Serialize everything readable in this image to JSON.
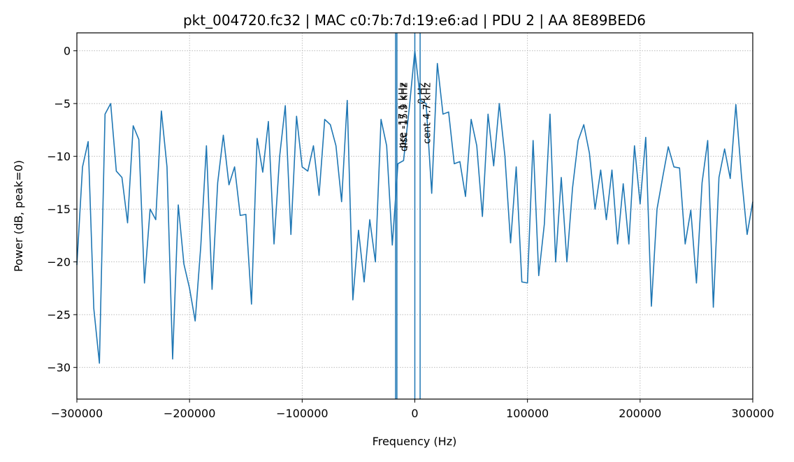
{
  "chart_data": {
    "type": "line",
    "title": "pkt_004720.fc32 | MAC c0:7b:7d:19:e6:ad | PDU 2 | AA 8E89BED6",
    "x_label": "Frequency (Hz)",
    "y_label": "Power (dB, peak=0)",
    "x": [
      -300000,
      -295000,
      -290000,
      -285000,
      -280000,
      -275000,
      -270000,
      -265000,
      -260000,
      -255000,
      -250000,
      -245000,
      -240000,
      -235000,
      -230000,
      -225000,
      -220000,
      -215000,
      -210000,
      -205000,
      -200000,
      -195000,
      -190000,
      -185000,
      -180000,
      -175000,
      -170000,
      -165000,
      -160000,
      -155000,
      -150000,
      -145000,
      -140000,
      -135000,
      -130000,
      -125000,
      -120000,
      -115000,
      -110000,
      -105000,
      -100000,
      -95000,
      -90000,
      -85000,
      -80000,
      -75000,
      -70000,
      -65000,
      -60000,
      -55000,
      -50000,
      -45000,
      -40000,
      -35000,
      -30000,
      -25000,
      -20000,
      -15000,
      -10000,
      -5000,
      0,
      5000,
      10000,
      15000,
      20000,
      25000,
      30000,
      35000,
      40000,
      45000,
      50000,
      55000,
      60000,
      65000,
      70000,
      75000,
      80000,
      85000,
      90000,
      95000,
      100000,
      105000,
      110000,
      115000,
      120000,
      125000,
      130000,
      135000,
      140000,
      145000,
      150000,
      155000,
      160000,
      165000,
      170000,
      175000,
      180000,
      185000,
      190000,
      195000,
      200000,
      205000,
      210000,
      215000,
      220000,
      225000,
      230000,
      235000,
      240000,
      245000,
      250000,
      255000,
      260000,
      265000,
      270000,
      275000,
      280000,
      285000,
      290000,
      295000,
      300000
    ],
    "series": [
      {
        "name": "spectrum",
        "color": "#1f77b4",
        "values": [
          -20.3,
          -11,
          -8.6,
          -24.4,
          -29.6,
          -6,
          -5,
          -11.4,
          -12,
          -16.3,
          -7.1,
          -8.4,
          -22,
          -15,
          -16,
          -5.7,
          -11,
          -29.2,
          -14.6,
          -20.2,
          -22.5,
          -25.6,
          -18.5,
          -9,
          -22.6,
          -12.5,
          -8,
          -12.7,
          -11,
          -15.6,
          -15.5,
          -24,
          -8.3,
          -11.5,
          -6.7,
          -18.3,
          -10,
          -5.2,
          -17.4,
          -6.2,
          -11,
          -11.4,
          -9,
          -13.7,
          -6.5,
          -7,
          -9,
          -14.3,
          -4.7,
          -23.6,
          -17,
          -21.9,
          -16,
          -20,
          -6.5,
          -9,
          -18.4,
          -10.7,
          -10.4,
          -5.5,
          0,
          -4.7,
          -5,
          -13.5,
          -1.2,
          -6,
          -5.8,
          -10.7,
          -10.5,
          -13.8,
          -6.5,
          -9,
          -15.7,
          -6,
          -10.9,
          -5,
          -10,
          -18.2,
          -11,
          -21.9,
          -22,
          -8.5,
          -21.3,
          -16.4,
          -6,
          -20,
          -12,
          -20,
          -13,
          -8.5,
          -7,
          -9.7,
          -15,
          -11.3,
          -16,
          -11.3,
          -18.3,
          -12.6,
          -18.3,
          -9,
          -14.5,
          -8.2,
          -24.2,
          -15,
          -12,
          -9.1,
          -11,
          -11.1,
          -18.3,
          -15.1,
          -22,
          -12.5,
          -8.5,
          -24.3,
          -12,
          -9.3,
          -12.1,
          -5.1,
          -11.9,
          -17.4,
          -14.3
        ]
      }
    ],
    "markers": [
      {
        "x": -17100,
        "label": "pre -17.1 kHz"
      },
      {
        "x": -15900,
        "label": "disc -15.9 kHz"
      },
      {
        "x": 0,
        "label": "0 Hz"
      },
      {
        "x": 4700,
        "label": "cent 4.7 kHz"
      }
    ],
    "xlim": [
      -300000,
      300000
    ],
    "xticks": [
      {
        "value": -300000,
        "label": "−300000"
      },
      {
        "value": -200000,
        "label": "−200000"
      },
      {
        "value": -100000,
        "label": "−100000"
      },
      0,
      100000,
      200000,
      300000
    ],
    "ylim": [
      -33,
      1.7
    ],
    "yticks": [
      {
        "value": -30,
        "label": "−30"
      },
      {
        "value": -25,
        "label": "−25"
      },
      {
        "value": -20,
        "label": "−20"
      },
      {
        "value": -15,
        "label": "−15"
      },
      {
        "value": -10,
        "label": "−10"
      },
      {
        "value": -5,
        "label": "−5"
      },
      0
    ],
    "grid": true
  }
}
